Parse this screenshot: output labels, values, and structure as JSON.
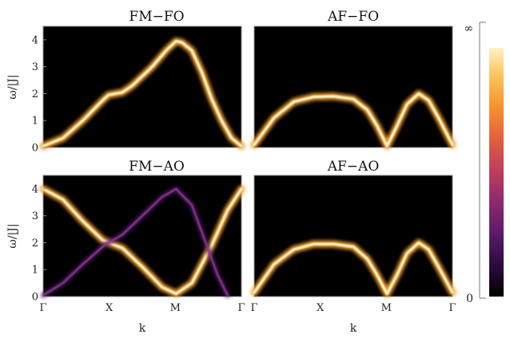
{
  "chart_data": [
    {
      "type": "heatmap",
      "title": "FM−FO",
      "ylabel": "ω/|J|",
      "xlabel": "",
      "x_ticks": [],
      "y_ticks": [
        "0",
        "1",
        "2",
        "3",
        "4"
      ],
      "ylim": [
        0,
        4.5
      ],
      "background": "#000000",
      "branches": [
        {
          "intensity": 0.85,
          "width": 0.12,
          "points": [
            [
              0,
              0.05
            ],
            [
              0.1,
              0.35
            ],
            [
              0.2,
              1.0
            ],
            [
              0.3,
              1.75
            ],
            [
              0.33,
              1.95
            ],
            [
              0.4,
              2.05
            ],
            [
              0.45,
              2.3
            ],
            [
              0.55,
              3.0
            ],
            [
              0.62,
              3.6
            ],
            [
              0.67,
              3.95
            ],
            [
              0.7,
              3.9
            ],
            [
              0.75,
              3.6
            ],
            [
              0.8,
              2.8
            ],
            [
              0.85,
              1.8
            ],
            [
              0.9,
              1.0
            ],
            [
              0.95,
              0.35
            ],
            [
              1.0,
              0.05
            ]
          ]
        }
      ]
    },
    {
      "type": "heatmap",
      "title": "AF−FO",
      "ylabel": "",
      "xlabel": "",
      "x_ticks": [],
      "y_ticks": [],
      "ylim": [
        0,
        4.5
      ],
      "background": "#000000",
      "branches": [
        {
          "intensity": 0.85,
          "width": 0.12,
          "points": [
            [
              0,
              0.1
            ],
            [
              0.1,
              1.1
            ],
            [
              0.2,
              1.7
            ],
            [
              0.3,
              1.88
            ],
            [
              0.4,
              1.9
            ],
            [
              0.5,
              1.8
            ],
            [
              0.57,
              1.4
            ],
            [
              0.62,
              0.8
            ],
            [
              0.67,
              0.05
            ],
            [
              0.72,
              0.8
            ],
            [
              0.77,
              1.6
            ],
            [
              0.83,
              2.0
            ],
            [
              0.88,
              1.75
            ],
            [
              0.93,
              1.1
            ],
            [
              1.0,
              0.1
            ]
          ]
        }
      ]
    },
    {
      "type": "heatmap",
      "title": "FM−AO",
      "ylabel": "ω/|J|",
      "xlabel": "k",
      "x_ticks": [
        "Γ",
        "X",
        "M",
        "Γ"
      ],
      "y_ticks": [
        "0",
        "1",
        "2",
        "3",
        "4"
      ],
      "ylim": [
        0,
        4.5
      ],
      "background": "#000000",
      "branches": [
        {
          "intensity": 0.9,
          "width": 0.12,
          "points": [
            [
              0,
              4.0
            ],
            [
              0.1,
              3.6
            ],
            [
              0.2,
              2.8
            ],
            [
              0.3,
              2.1
            ],
            [
              0.33,
              2.0
            ],
            [
              0.4,
              1.8
            ],
            [
              0.5,
              1.1
            ],
            [
              0.6,
              0.35
            ],
            [
              0.67,
              0.1
            ],
            [
              0.75,
              0.5
            ],
            [
              0.85,
              1.9
            ],
            [
              0.93,
              3.2
            ],
            [
              1.0,
              4.0
            ]
          ]
        },
        {
          "intensity": 0.35,
          "width": 0.12,
          "points": [
            [
              0,
              0.05
            ],
            [
              0.1,
              0.5
            ],
            [
              0.2,
              1.2
            ],
            [
              0.3,
              1.85
            ],
            [
              0.33,
              2.0
            ],
            [
              0.4,
              2.3
            ],
            [
              0.5,
              3.0
            ],
            [
              0.6,
              3.7
            ],
            [
              0.67,
              4.0
            ],
            [
              0.75,
              3.4
            ],
            [
              0.82,
              2.0
            ],
            [
              0.88,
              0.8
            ],
            [
              0.93,
              0.05
            ]
          ]
        }
      ]
    },
    {
      "type": "heatmap",
      "title": "AF−AO",
      "ylabel": "",
      "xlabel": "k",
      "x_ticks": [
        "Γ",
        "X",
        "M",
        "Γ"
      ],
      "y_ticks": [],
      "ylim": [
        0,
        4.5
      ],
      "background": "#000000",
      "branches": [
        {
          "intensity": 0.95,
          "width": 0.12,
          "points": [
            [
              0,
              0.15
            ],
            [
              0.1,
              1.2
            ],
            [
              0.2,
              1.75
            ],
            [
              0.3,
              1.95
            ],
            [
              0.4,
              1.95
            ],
            [
              0.5,
              1.85
            ],
            [
              0.57,
              1.4
            ],
            [
              0.62,
              0.8
            ],
            [
              0.67,
              0.1
            ],
            [
              0.72,
              0.8
            ],
            [
              0.77,
              1.6
            ],
            [
              0.83,
              2.0
            ],
            [
              0.88,
              1.75
            ],
            [
              0.93,
              1.1
            ],
            [
              1.0,
              0.15
            ]
          ]
        }
      ]
    }
  ],
  "colorbar": {
    "top_label": "∞",
    "bottom_label": "0",
    "colormap": [
      "#000000",
      "#2a0b3d",
      "#5a1a6a",
      "#8e2a6e",
      "#c2415a",
      "#e8643a",
      "#f79a2e",
      "#fbc865",
      "#fff2c4"
    ]
  }
}
